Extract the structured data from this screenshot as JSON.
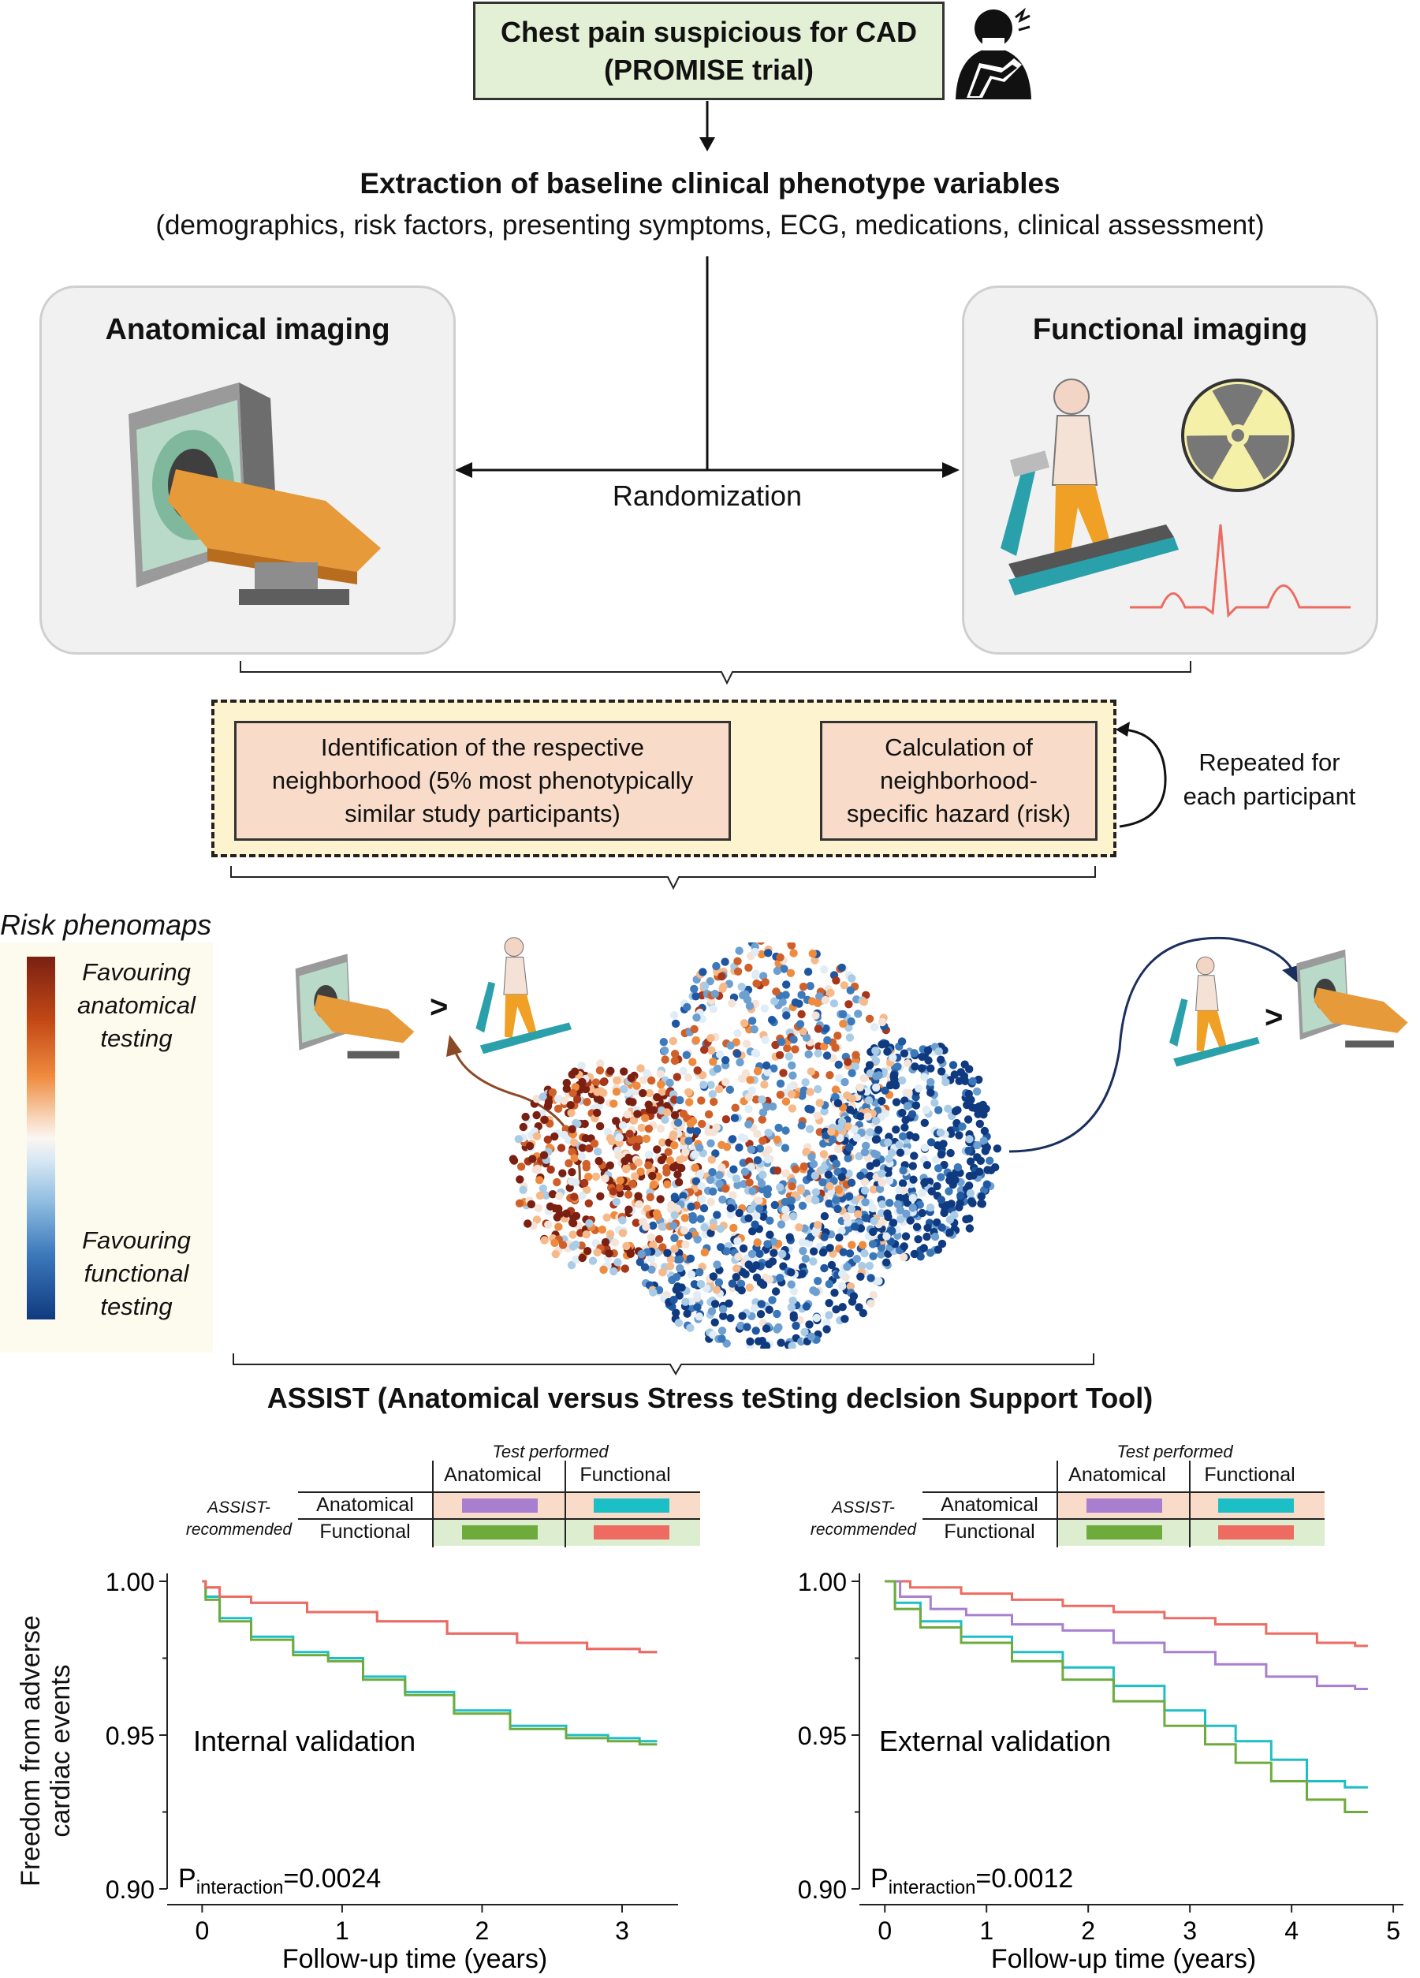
{
  "top_box": {
    "line1": "Chest pain suspicious for CAD",
    "line2": "(PROMISE trial)"
  },
  "extraction": {
    "title": "Extraction of baseline clinical phenotype variables",
    "subtitle": "(demographics, risk factors, presenting symptoms, ECG, medications, clinical assessment)"
  },
  "anatomical_panel": {
    "title": "Anatomical imaging"
  },
  "functional_panel": {
    "title": "Functional imaging"
  },
  "randomization": "Randomization",
  "process": {
    "box1": [
      "Identification of the respective",
      "neighborhood (5% most phenotypically",
      "similar study participants)"
    ],
    "box2": [
      "Calculation of",
      "neighborhood-",
      "specific hazard (risk)"
    ],
    "repeat": [
      "Repeated for",
      "each participant"
    ]
  },
  "phenomap": {
    "title": "Risk phenomaps",
    "favour_anatomical": [
      "Favouring",
      "anatomical",
      "testing"
    ],
    "favour_functional": [
      "Favouring",
      "functional",
      "testing"
    ],
    "gt_symbol": ">",
    "colors": {
      "anatomical": "#a33a14",
      "functional": "#1b4a8c"
    }
  },
  "assist_title": "ASSIST (Anatomical versus Stress teSting decIsion Support Tool)",
  "key_table": {
    "test_performed": "Test performed",
    "col_anatomical": "Anatomical",
    "col_functional": "Functional",
    "row_header": [
      "ASSIST-",
      "recommended"
    ],
    "row_anatomical": "Anatomical",
    "row_functional": "Functional",
    "colors": {
      "aa": "#a87ed0",
      "af": "#1dbfc6",
      "fa": "#6eab3c",
      "ff": "#ee6b61",
      "row_bg_a": "#f8dcc9",
      "row_bg_f": "#ddeed0"
    }
  },
  "y_axis_label": [
    "Freedom from adverse",
    "cardiac events"
  ],
  "chart_data": [
    {
      "type": "line",
      "annotation": "Internal validation",
      "p_label": "P",
      "p_sub": "interaction",
      "p_value": "=0.0024",
      "xlabel": "Follow-up time (years)",
      "ylabel": "Freedom from adverse cardiac events",
      "xlim": [
        -0.25,
        3.4
      ],
      "ylim": [
        0.9,
        1.0
      ],
      "xticks": [
        0,
        1,
        2,
        3
      ],
      "yticks": [
        "0.90",
        "0.95",
        "1.00"
      ],
      "series": [
        {
          "color": "#a87ed0",
          "x": [
            0,
            0.05,
            0.2,
            0.5,
            1.0,
            1.5,
            2.0,
            2.5,
            3.0,
            3.25
          ],
          "y": [
            1.0,
            0.998,
            0.995,
            0.993,
            0.99,
            0.987,
            0.983,
            0.98,
            0.978,
            0.977
          ]
        },
        {
          "color": "#1dbfc6",
          "x": [
            0,
            0.05,
            0.2,
            0.5,
            0.8,
            1.0,
            1.3,
            1.6,
            2.0,
            2.4,
            2.8,
            3.0,
            3.25
          ],
          "y": [
            1.0,
            0.995,
            0.988,
            0.982,
            0.977,
            0.975,
            0.969,
            0.964,
            0.958,
            0.953,
            0.95,
            0.949,
            0.948
          ]
        },
        {
          "color": "#6eab3c",
          "x": [
            0,
            0.05,
            0.2,
            0.5,
            0.8,
            1.0,
            1.3,
            1.6,
            2.0,
            2.4,
            2.8,
            3.0,
            3.25
          ],
          "y": [
            1.0,
            0.994,
            0.987,
            0.981,
            0.976,
            0.974,
            0.968,
            0.963,
            0.957,
            0.952,
            0.949,
            0.948,
            0.947
          ]
        },
        {
          "color": "#ee6b61",
          "x": [
            0,
            0.05,
            0.2,
            0.5,
            1.0,
            1.5,
            2.0,
            2.5,
            3.0,
            3.25
          ],
          "y": [
            1.0,
            0.998,
            0.995,
            0.993,
            0.99,
            0.987,
            0.983,
            0.98,
            0.978,
            0.977
          ]
        }
      ]
    },
    {
      "type": "line",
      "annotation": "External validation",
      "p_label": "P",
      "p_sub": "interaction",
      "p_value": "=0.0012",
      "xlabel": "Follow-up time (years)",
      "ylabel": "Freedom from adverse cardiac events",
      "xlim": [
        -0.25,
        5.1
      ],
      "ylim": [
        0.9,
        1.0
      ],
      "xticks": [
        0,
        1,
        2,
        3,
        4,
        5
      ],
      "yticks": [
        "0.90",
        "0.95",
        "1.00"
      ],
      "series": [
        {
          "color": "#ee6b61",
          "x": [
            0,
            0.5,
            1.0,
            1.5,
            2.0,
            2.5,
            3.0,
            3.5,
            4.0,
            4.5,
            4.75
          ],
          "y": [
            1.0,
            0.998,
            0.996,
            0.994,
            0.992,
            0.99,
            0.988,
            0.986,
            0.983,
            0.98,
            0.979
          ]
        },
        {
          "color": "#a87ed0",
          "x": [
            0,
            0.3,
            0.6,
            1.0,
            1.5,
            2.0,
            2.5,
            3.0,
            3.5,
            4.0,
            4.5,
            4.75
          ],
          "y": [
            1.0,
            0.995,
            0.991,
            0.989,
            0.986,
            0.984,
            0.98,
            0.977,
            0.973,
            0.969,
            0.966,
            0.965
          ]
        },
        {
          "color": "#1dbfc6",
          "x": [
            0,
            0.2,
            0.5,
            1.0,
            1.5,
            2.0,
            2.5,
            3.0,
            3.3,
            3.6,
            4.0,
            4.3,
            4.75
          ],
          "y": [
            1.0,
            0.993,
            0.987,
            0.982,
            0.977,
            0.972,
            0.966,
            0.958,
            0.953,
            0.948,
            0.942,
            0.935,
            0.933
          ]
        },
        {
          "color": "#6eab3c",
          "x": [
            0,
            0.2,
            0.5,
            1.0,
            1.5,
            2.0,
            2.5,
            3.0,
            3.3,
            3.6,
            4.0,
            4.3,
            4.75
          ],
          "y": [
            1.0,
            0.991,
            0.985,
            0.98,
            0.974,
            0.968,
            0.961,
            0.953,
            0.947,
            0.941,
            0.935,
            0.929,
            0.925
          ]
        }
      ]
    }
  ]
}
